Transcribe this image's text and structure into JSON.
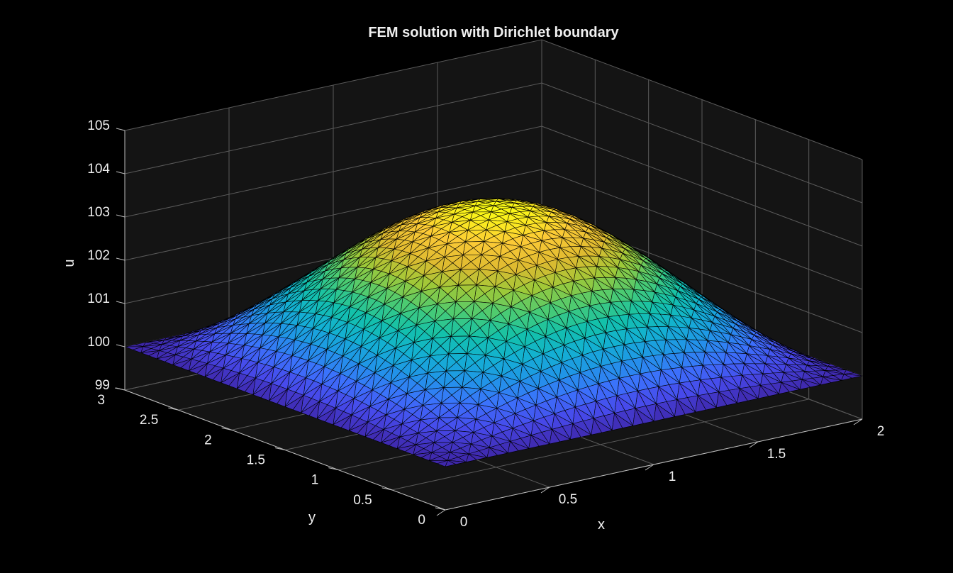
{
  "colors": {
    "background": "#000000",
    "axes_background": "#141414",
    "grid": "#5a5a5a",
    "text": "#f0f0f0",
    "edge": "#000000",
    "colormap": "parula"
  },
  "chart_data": {
    "type": "surface",
    "title": "FEM solution with Dirichlet boundary",
    "xlabel": "x",
    "ylabel": "y",
    "zlabel": "u",
    "xlim": [
      0,
      2
    ],
    "ylim": [
      0,
      3
    ],
    "zlim": [
      99,
      105
    ],
    "xticks": [
      0,
      0.5,
      1,
      1.5,
      2
    ],
    "yticks": [
      0,
      0.5,
      1,
      1.5,
      2,
      2.5,
      3
    ],
    "zticks": [
      99,
      100,
      101,
      102,
      103,
      104,
      105
    ],
    "xtick_labels": [
      "0",
      "0.5",
      "1",
      "1.5",
      "2"
    ],
    "ytick_labels": [
      "0",
      "0.5",
      "1",
      "1.5",
      "2",
      "2.5",
      "3"
    ],
    "ztick_labels": [
      "99",
      "100",
      "101",
      "102",
      "103",
      "104",
      "105"
    ],
    "grid": true,
    "mesh": "triangular",
    "surface_function": "u(x,y) = 100 + 3.6 * sin(pi*x/2) * sin(pi*y/3)",
    "boundary_value": 100,
    "peak_value": 103.6,
    "peak_at": {
      "x": 1,
      "y": 1.5
    }
  }
}
